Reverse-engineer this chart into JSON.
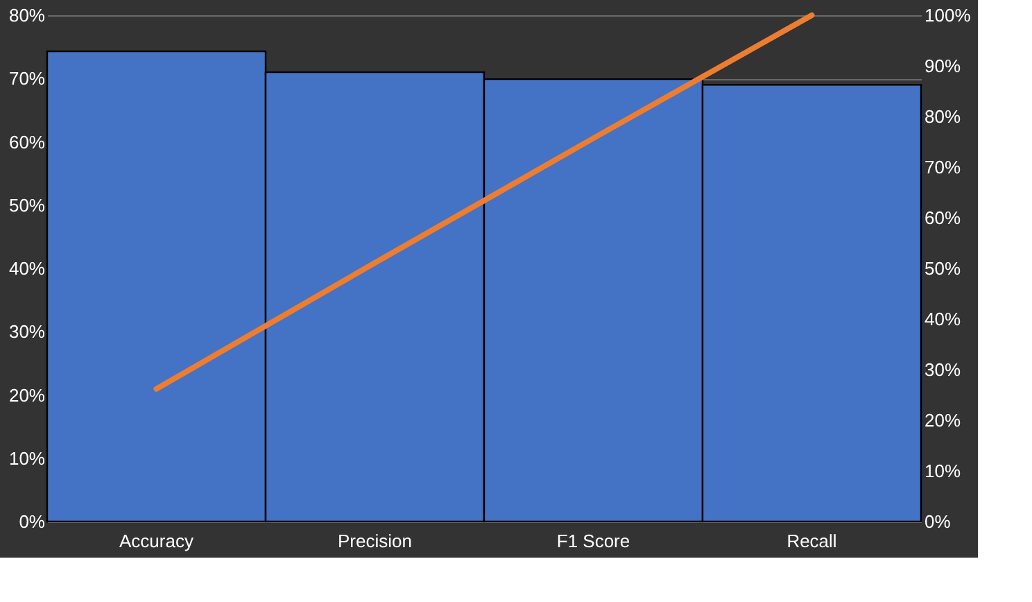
{
  "chart_data": {
    "type": "bar",
    "categories": [
      "Accuracy",
      "Precision",
      "F1 Score",
      "Recall"
    ],
    "series": [
      {
        "color": "#4472c4",
        "values": [
          74.3,
          71.0,
          69.9,
          69.0
        ]
      },
      {
        "type": "line",
        "axis": "y2",
        "color": "#ed7d31",
        "values": [
          26.2,
          51.1,
          75.7,
          100
        ]
      }
    ],
    "ylim": [
      0,
      80
    ],
    "yticks": [
      {
        "value": 0,
        "label": "0%"
      },
      {
        "value": 10,
        "label": "10%"
      },
      {
        "value": 20,
        "label": "20%"
      },
      {
        "value": 30,
        "label": "30%"
      },
      {
        "value": 40,
        "label": "40%"
      },
      {
        "value": 50,
        "label": "50%"
      },
      {
        "value": 60,
        "label": "60%"
      },
      {
        "value": 70,
        "label": "70%"
      },
      {
        "value": 80,
        "label": "80%"
      }
    ],
    "y2lim": [
      0,
      100
    ],
    "y2ticks": [
      {
        "value": 0,
        "label": "0%"
      },
      {
        "value": 10,
        "label": "10%"
      },
      {
        "value": 20,
        "label": "20%"
      },
      {
        "value": 30,
        "label": "30%"
      },
      {
        "value": 40,
        "label": "40%"
      },
      {
        "value": 50,
        "label": "50%"
      },
      {
        "value": 60,
        "label": "60%"
      },
      {
        "value": 70,
        "label": "70%"
      },
      {
        "value": 80,
        "label": "80%"
      },
      {
        "value": 90,
        "label": "90%"
      },
      {
        "value": 100,
        "label": "100%"
      }
    ],
    "grid": "y",
    "line_style": "solid",
    "marker": "none"
  }
}
